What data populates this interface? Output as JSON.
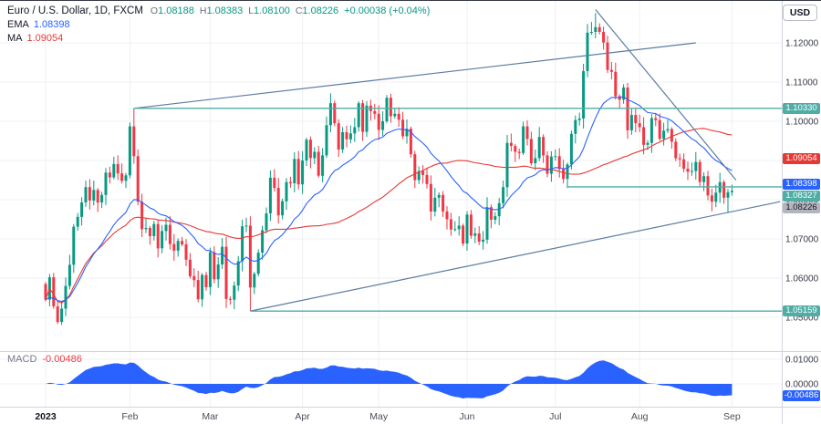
{
  "header": {
    "title": "Euro / U.S. Dollar, 1D, FXCM",
    "ohlc": [
      {
        "label": "O",
        "value": "1.08188"
      },
      {
        "label": "H",
        "value": "1.08383"
      },
      {
        "label": "L",
        "value": "1.08100"
      },
      {
        "label": "C",
        "value": "1.08226"
      }
    ],
    "change": "+0.00038 (+0.04%)",
    "indicators": [
      {
        "name": "EMA",
        "value": "1.08398",
        "color_key": "ema"
      },
      {
        "name": "MA",
        "value": "1.09054",
        "color_key": "ma"
      }
    ]
  },
  "toolbar": {
    "currency_button": "USD"
  },
  "macd_pane": {
    "label": "MACD",
    "value": "-0.00486",
    "axis_ticks": [
      {
        "label": "0.01000",
        "value": 0.01
      },
      {
        "label": "0.00000",
        "value": 0.0
      }
    ],
    "badge": {
      "label": "-0.00486",
      "value": -0.00486
    }
  },
  "colors": {
    "up": "#089981",
    "down": "#f23645",
    "ema": "#2962ff",
    "ma": "#e53935",
    "teal": "#4fada6",
    "last_bg": "#b2b5be",
    "last_text": "#131722",
    "macd": "#2962ff",
    "trend": "#5d7ca2",
    "grid": "#eef0f5",
    "separator": "#d1d4dc",
    "axis_text": "#363a45",
    "time_text": "#4a4e59",
    "positive": "#089981",
    "negative": "#f23645"
  },
  "chart_data": {
    "type": "candlestick",
    "symbol": "Euro / U.S. Dollar",
    "interval": "1D",
    "exchange": "FXCM",
    "quote_currency": "USD",
    "last_candle": {
      "open": 1.08188,
      "high": 1.08383,
      "low": 1.081,
      "close": 1.08226,
      "change": 0.00038,
      "change_pct": 0.04
    },
    "indicator_values": {
      "ema": 1.08398,
      "ma": 1.09054,
      "macd": -0.00486
    },
    "y_ticks": [
      1.05,
      1.06,
      1.07,
      1.08,
      1.09,
      1.1,
      1.11,
      1.12
    ],
    "x_labels": [
      {
        "label": "2023",
        "bar": 0,
        "year": true
      },
      {
        "label": "Feb",
        "bar": 21
      },
      {
        "label": "Mar",
        "bar": 41
      },
      {
        "label": "Apr",
        "bar": 64
      },
      {
        "label": "May",
        "bar": 83
      },
      {
        "label": "Jun",
        "bar": 105
      },
      {
        "label": "Jul",
        "bar": 127
      },
      {
        "label": "Aug",
        "bar": 148
      },
      {
        "label": "Sep",
        "bar": 171
      }
    ],
    "first_open": 1.0585,
    "closes": [
      1.0545,
      1.0602,
      1.0528,
      1.0488,
      1.0522,
      1.058,
      1.0634,
      1.0731,
      1.0756,
      1.0793,
      1.0832,
      1.0798,
      1.0825,
      1.0793,
      1.0812,
      1.0869,
      1.0857,
      1.0891,
      1.0867,
      1.0848,
      1.0862,
      1.0987,
      1.0911,
      1.0795,
      1.0725,
      1.0728,
      1.0707,
      1.0738,
      1.0676,
      1.072,
      1.0736,
      1.0687,
      1.067,
      1.0695,
      1.0686,
      1.0647,
      1.0605,
      1.0595,
      1.0546,
      1.0608,
      1.0577,
      1.0666,
      1.0597,
      1.0635,
      1.068,
      1.0547,
      1.0545,
      1.0581,
      1.0643,
      1.0732,
      1.0734,
      1.0576,
      1.0611,
      1.0665,
      1.0722,
      1.0765,
      1.0856,
      1.083,
      1.076,
      1.0796,
      1.0845,
      1.0842,
      1.0904,
      1.0839,
      1.09,
      1.0953,
      1.0906,
      1.0922,
      1.0861,
      1.0913,
      1.099,
      1.1046,
      1.0995,
      1.0928,
      1.0972,
      1.0954,
      1.0969,
      1.0985,
      1.1046,
      1.0973,
      1.104,
      1.1026,
      1.1019,
      1.0978,
      1.1,
      1.106,
      1.1013,
      1.1019,
      1.1004,
      1.0962,
      1.0981,
      1.0916,
      1.085,
      1.0873,
      1.0863,
      1.084,
      1.077,
      1.0805,
      1.0812,
      1.077,
      1.075,
      1.0724,
      1.0725,
      1.0734,
      1.0688,
      1.0762,
      1.0708,
      1.0714,
      1.0693,
      1.0698,
      1.0781,
      1.0749,
      1.0758,
      1.0791,
      1.0832,
      1.0945,
      1.0937,
      1.0922,
      1.0919,
      1.0987,
      1.0955,
      1.0893,
      1.0906,
      1.096,
      1.0913,
      1.0866,
      1.091,
      1.0911,
      1.0878,
      1.0853,
      1.089,
      1.0968,
      1.1003,
      1.1007,
      1.1128,
      1.1226,
      1.1228,
      1.124,
      1.1228,
      1.1201,
      1.1131,
      1.1126,
      1.1064,
      1.1055,
      1.1086,
      1.0977,
      1.1016,
      1.0995,
      1.0985,
      1.094,
      1.0945,
      1.1008,
      1.1003,
      1.0955,
      1.0976,
      1.098,
      1.0948,
      1.0906,
      1.0903,
      1.0879,
      1.0871,
      1.0873,
      1.0896,
      1.0845,
      1.086,
      1.0811,
      1.0795,
      1.0818,
      1.0845,
      1.0805,
      1.08188,
      1.08226
    ],
    "wick_overrides": {
      "3": {
        "low": 1.0483
      },
      "22": {
        "high": 1.1033
      },
      "51": {
        "low": 1.05159
      },
      "137": {
        "high": 1.1276
      },
      "170": {
        "low": 1.0766
      },
      "171": {
        "high": 1.08383,
        "low": 1.081
      }
    },
    "price_labels": [
      {
        "text": "1.10330",
        "price": 1.1033,
        "color_key": "teal"
      },
      {
        "text": "1.09054",
        "price": 1.09054,
        "color_key": "ma"
      },
      {
        "text": "1.08398",
        "price": 1.08398,
        "color_key": "ema"
      },
      {
        "text": "1.08327",
        "price": 1.08327,
        "color_key": "teal"
      },
      {
        "text": "1.08226",
        "price": 1.08226,
        "color_key": "last"
      },
      {
        "text": "1.05159",
        "price": 1.05159,
        "color_key": "teal"
      }
    ],
    "lines": {
      "horizontal": [
        {
          "price": 1.1033,
          "from_bar": 22
        },
        {
          "price": 1.08327,
          "from_bar": 130
        },
        {
          "price": 1.05159,
          "from_bar": 51
        }
      ],
      "trend": [
        {
          "b1": 22,
          "p1": 1.1033,
          "b2": 162,
          "p2": 1.12
        },
        {
          "b1": 51,
          "p1": 1.0516,
          "b2": 183,
          "p2": 1.0795
        },
        {
          "b1": 137,
          "p1": 1.1285,
          "b2": 172,
          "p2": 1.085
        }
      ]
    }
  }
}
